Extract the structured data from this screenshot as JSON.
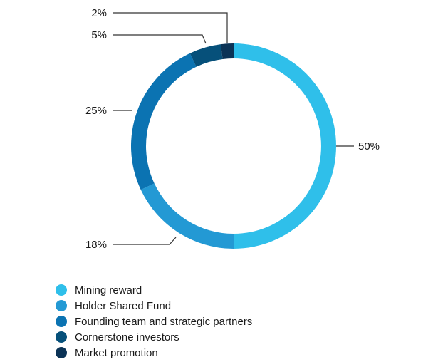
{
  "chart_data": {
    "type": "pie",
    "subtype": "donut",
    "title": "",
    "legend_position": "bottom-left",
    "series": [
      {
        "name": "Mining reward",
        "value": 50,
        "label": "50%",
        "color": "#2fbfea"
      },
      {
        "name": "Holder Shared Fund",
        "value": 18,
        "label": "18%",
        "color": "#2399d4"
      },
      {
        "name": "Founding team and strategic partners",
        "value": 25,
        "label": "25%",
        "color": "#0b73b2"
      },
      {
        "name": "Cornerstone investors",
        "value": 5,
        "label": "5%",
        "color": "#06507a"
      },
      {
        "name": "Market promotion",
        "value": 2,
        "label": "2%",
        "color": "#0b3356"
      }
    ]
  }
}
